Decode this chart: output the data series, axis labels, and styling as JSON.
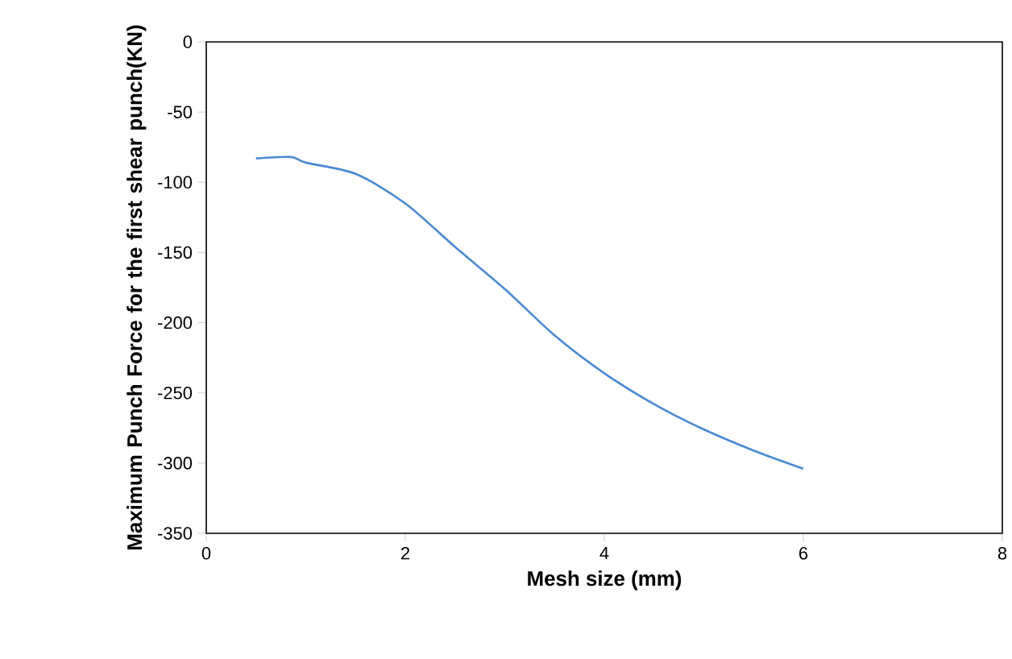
{
  "chart_data": {
    "type": "line",
    "xlabel": "Mesh size (mm)",
    "ylabel": "Maximum Punch Force for the first shear punch(KN)",
    "x": [
      0.5,
      0.85,
      1,
      1.5,
      2,
      2.5,
      3,
      3.5,
      4,
      4.5,
      5,
      5.5,
      6
    ],
    "series": [
      {
        "color": "#4a8ad4",
        "values": [
          -83,
          -82,
          -86,
          -94,
          -115,
          -146,
          -176,
          -209,
          -236,
          -258,
          -276,
          -291,
          -304
        ]
      }
    ],
    "xlim": [
      0,
      8
    ],
    "xticks": [
      0,
      2,
      4,
      6,
      8
    ],
    "ylim": [
      -350,
      0
    ],
    "yticks": [
      -350,
      -300,
      -250,
      -200,
      -150,
      -100,
      -50,
      0
    ],
    "marker": "none",
    "line_style": "solid"
  }
}
